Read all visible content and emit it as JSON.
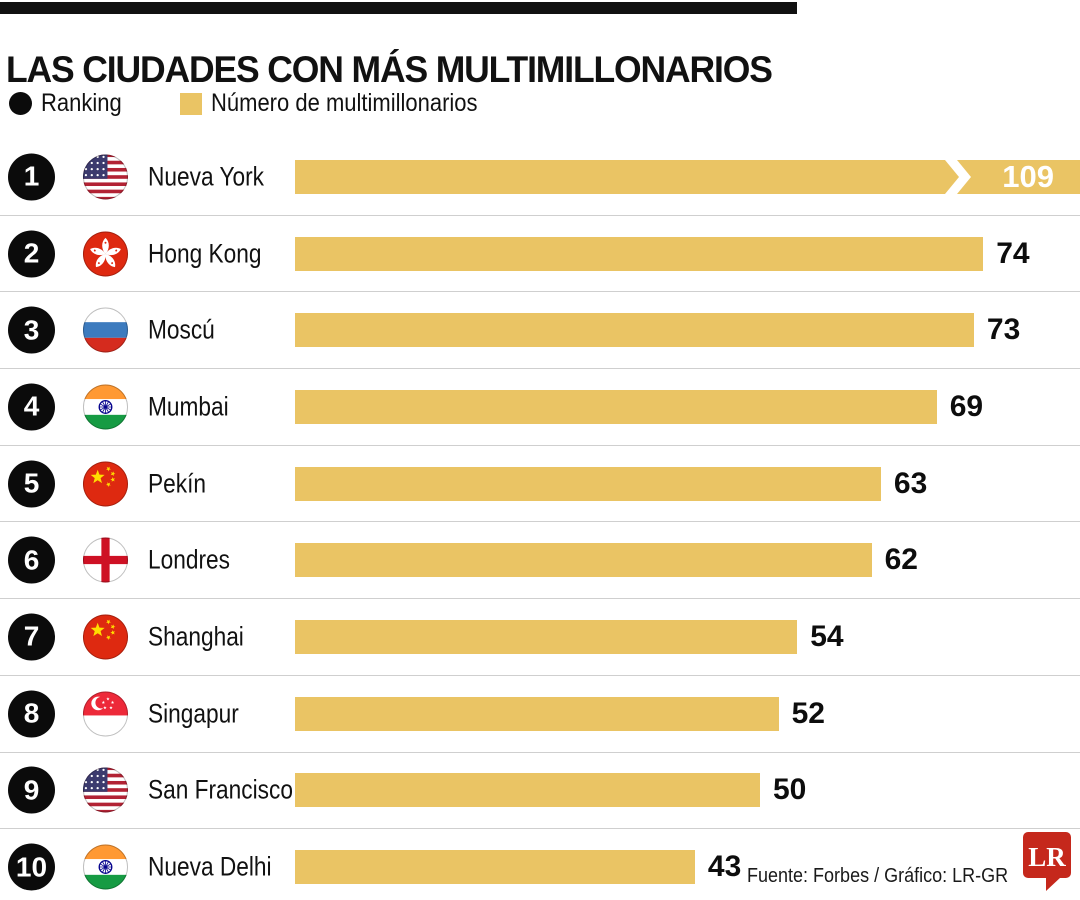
{
  "title": "LAS CIUDADES CON MÁS MULTIMILLONARIOS",
  "legend": {
    "ranking_label": "Ranking",
    "bars_label": "Número de multimillonarios"
  },
  "footer": {
    "source": "Fuente: Forbes / Gráfico: LR-GR",
    "logo_text": "LR"
  },
  "colors": {
    "bar_gold": "#EAC464",
    "rank_badge_black": "#0b0b0b",
    "divider_gray": "#cfcfcf",
    "logo_red": "#C5281C"
  },
  "chart_data": {
    "type": "bar",
    "orientation": "horizontal",
    "title": "LAS CIUDADES CON MÁS MULTIMILLONARIOS",
    "value_label": "Número de multimillonarios",
    "legend_position": "top",
    "grid": false,
    "first_bar_truncated_with_break_mark": true,
    "value_range_shown": [
      43,
      109
    ],
    "rows": [
      {
        "rank": 1,
        "city": "Nueva York",
        "flag": "us",
        "value": 109
      },
      {
        "rank": 2,
        "city": "Hong Kong",
        "flag": "hk",
        "value": 74
      },
      {
        "rank": 3,
        "city": "Moscú",
        "flag": "ru",
        "value": 73
      },
      {
        "rank": 4,
        "city": "Mumbai",
        "flag": "in",
        "value": 69
      },
      {
        "rank": 5,
        "city": "Pekín",
        "flag": "cn",
        "value": 63
      },
      {
        "rank": 6,
        "city": "Londres",
        "flag": "en",
        "value": 62
      },
      {
        "rank": 7,
        "city": "Shanghai",
        "flag": "cn",
        "value": 54
      },
      {
        "rank": 8,
        "city": "Singapur",
        "flag": "sg",
        "value": 52
      },
      {
        "rank": 9,
        "city": "San Francisco",
        "flag": "us",
        "value": 50
      },
      {
        "rank": 10,
        "city": "Nueva Delhi",
        "flag": "in",
        "value": 43
      }
    ]
  }
}
